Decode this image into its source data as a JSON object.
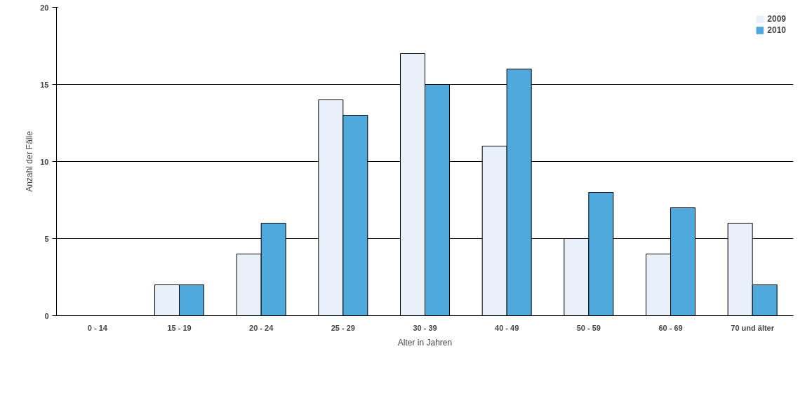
{
  "chart_data": {
    "type": "bar",
    "xlabel": "Alter in Jahren",
    "ylabel": "Anzahl der Fälle",
    "categories": [
      "0 - 14",
      "15 - 19",
      "20 - 24",
      "25 - 29",
      "30 - 39",
      "40 - 49",
      "50 - 59",
      "60 - 69",
      "70 und älter"
    ],
    "series": [
      {
        "name": "2009",
        "color": "#e8f0fa",
        "values": [
          0,
          2,
          4,
          14,
          17,
          11,
          5,
          4,
          6
        ]
      },
      {
        "name": "2010",
        "color": "#4fa9dc",
        "values": [
          0,
          2,
          6,
          13,
          15,
          16,
          8,
          7,
          2
        ]
      }
    ],
    "ylim": [
      0,
      20
    ],
    "yticks": [
      0,
      5,
      10,
      15,
      20
    ],
    "grid": "y",
    "legend": "top right"
  }
}
